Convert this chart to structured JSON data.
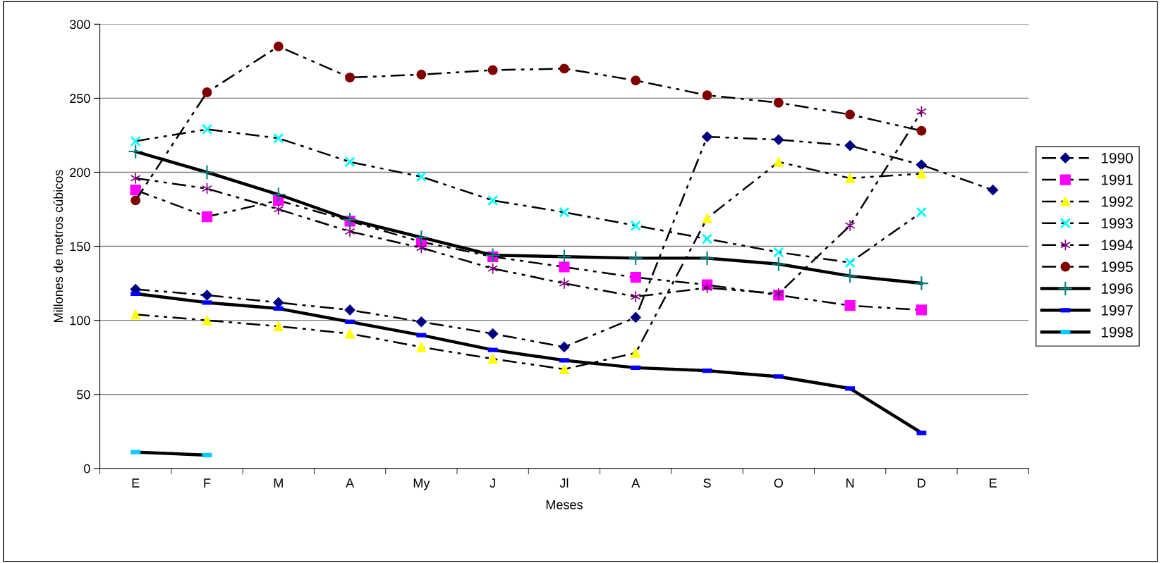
{
  "chart_data": {
    "type": "line",
    "xlabel": "Meses",
    "ylabel": "Millones de metros cúbicos",
    "categories": [
      "E",
      "F",
      "M",
      "A",
      "My",
      "J",
      "Jl",
      "A",
      "S",
      "O",
      "N",
      "D",
      "E"
    ],
    "ylim": [
      0,
      300
    ],
    "yticks": [
      0,
      50,
      100,
      150,
      200,
      250,
      300
    ],
    "grid": "y",
    "legend": "right",
    "series": [
      {
        "name": "1990",
        "color": "#000080",
        "marker": "diamond",
        "line_style": "dashed",
        "values": [
          121,
          117,
          112,
          107,
          99,
          91,
          82,
          102,
          224,
          222,
          218,
          205,
          188
        ]
      },
      {
        "name": "1991",
        "color": "#ff00ff",
        "marker": "square",
        "line_style": "dashed",
        "values": [
          188,
          170,
          181,
          167,
          153,
          143,
          136,
          129,
          124,
          117,
          110,
          107,
          null
        ]
      },
      {
        "name": "1992",
        "color": "#ffff00",
        "marker": "triangle",
        "line_style": "dashed",
        "values": [
          104,
          100,
          96,
          91,
          82,
          74,
          67,
          78,
          169,
          207,
          196,
          199,
          null
        ]
      },
      {
        "name": "1993",
        "color": "#00ffff",
        "marker": "cross",
        "line_style": "dashed",
        "values": [
          221,
          229,
          223,
          207,
          197,
          181,
          173,
          164,
          155,
          146,
          139,
          173,
          null
        ]
      },
      {
        "name": "1994",
        "color": "#800080",
        "marker": "cross",
        "line_style": "dashed",
        "values": [
          196,
          189,
          175,
          160,
          149,
          135,
          125,
          116,
          122,
          118,
          164,
          241,
          null
        ]
      },
      {
        "name": "1995",
        "color": "#800000",
        "marker": "circle",
        "line_style": "dashed",
        "values": [
          181,
          254,
          285,
          264,
          266,
          269,
          270,
          262,
          252,
          247,
          239,
          228,
          null
        ]
      },
      {
        "name": "1996",
        "color": "#008080",
        "marker": "plus",
        "line_style": "solid",
        "values": [
          214,
          200,
          185,
          168,
          156,
          144,
          143,
          142,
          142,
          138,
          130,
          125,
          null
        ]
      },
      {
        "name": "1997",
        "color": "#0000ff",
        "marker": "square",
        "line_style": "solid",
        "values": [
          118,
          112,
          108,
          99,
          90,
          80,
          73,
          68,
          66,
          62,
          54,
          24,
          null
        ]
      },
      {
        "name": "1998",
        "color": "#00ccff",
        "marker": "square",
        "line_style": "solid",
        "values": [
          11,
          9,
          null,
          null,
          null,
          null,
          null,
          null,
          null,
          null,
          null,
          null,
          null
        ]
      }
    ]
  }
}
